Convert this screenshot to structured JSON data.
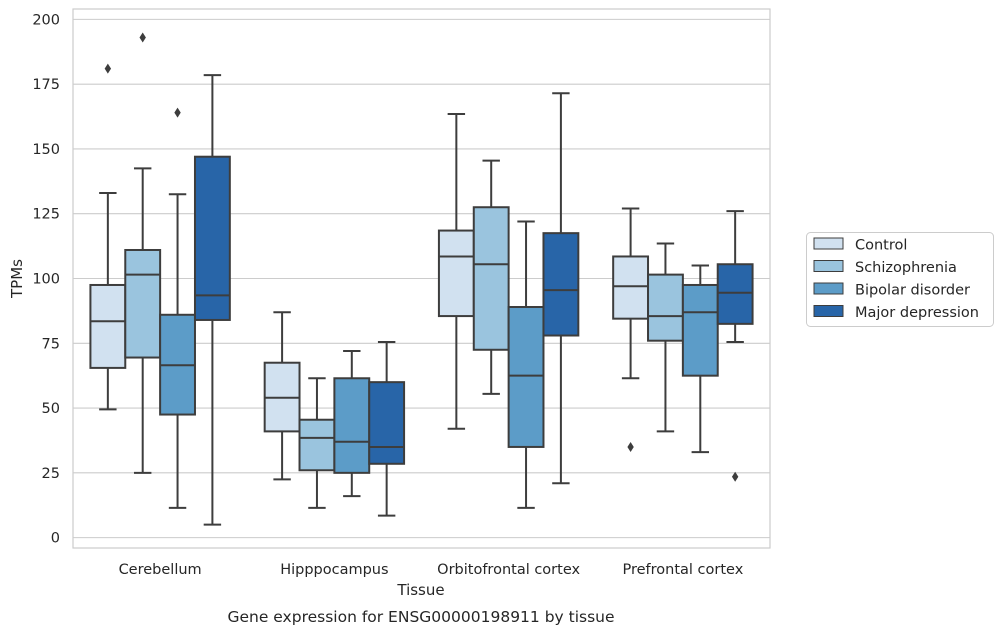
{
  "chart_data": {
    "type": "box",
    "title": "Gene expression for ENSG00000198911 by tissue",
    "xlabel": "Tissue",
    "ylabel": "TPMs",
    "ylim": [
      -4,
      204
    ],
    "yticks": [
      0,
      25,
      50,
      75,
      100,
      125,
      150,
      175,
      200
    ],
    "grid": "horizontal",
    "legend_position": "right",
    "categories": [
      "Cerebellum",
      "Hipppocampus",
      "Orbitofrontal cortex",
      "Prefrontal cortex"
    ],
    "series": [
      {
        "name": "Control",
        "color": "#d1e1f0",
        "boxes": [
          {
            "whislo": 49.5,
            "q1": 65.5,
            "med": 83.5,
            "q3": 97.5,
            "whishi": 133,
            "fliers": [
              181
            ]
          },
          {
            "whislo": 22.5,
            "q1": 41,
            "med": 54,
            "q3": 67.5,
            "whishi": 87,
            "fliers": []
          },
          {
            "whislo": 42,
            "q1": 85.5,
            "med": 108.5,
            "q3": 118.5,
            "whishi": 163.5,
            "fliers": []
          },
          {
            "whislo": 61.5,
            "q1": 84.5,
            "med": 97,
            "q3": 108.5,
            "whishi": 127,
            "fliers": [
              35
            ]
          }
        ]
      },
      {
        "name": "Schizophrenia",
        "color": "#9ac4de",
        "boxes": [
          {
            "whislo": 25,
            "q1": 69.5,
            "med": 101.5,
            "q3": 111,
            "whishi": 142.5,
            "fliers": [
              193
            ]
          },
          {
            "whislo": 11.5,
            "q1": 26,
            "med": 38.5,
            "q3": 45.5,
            "whishi": 61.5,
            "fliers": []
          },
          {
            "whislo": 55.5,
            "q1": 72.5,
            "med": 105.5,
            "q3": 127.5,
            "whishi": 145.5,
            "fliers": []
          },
          {
            "whislo": 41,
            "q1": 76,
            "med": 85.5,
            "q3": 101.5,
            "whishi": 113.5,
            "fliers": []
          }
        ]
      },
      {
        "name": "Bipolar disorder",
        "color": "#5c9cc8",
        "boxes": [
          {
            "whislo": 11.5,
            "q1": 47.5,
            "med": 66.5,
            "q3": 86,
            "whishi": 132.5,
            "fliers": [
              164
            ]
          },
          {
            "whislo": 16,
            "q1": 25,
            "med": 37,
            "q3": 61.5,
            "whishi": 72,
            "fliers": []
          },
          {
            "whislo": 11.5,
            "q1": 35,
            "med": 62.5,
            "q3": 89,
            "whishi": 122,
            "fliers": []
          },
          {
            "whislo": 33,
            "q1": 62.5,
            "med": 87,
            "q3": 97.5,
            "whishi": 105,
            "fliers": []
          }
        ]
      },
      {
        "name": "Major depression",
        "color": "#2865a8",
        "boxes": [
          {
            "whislo": 5,
            "q1": 84,
            "med": 93.5,
            "q3": 147,
            "whishi": 178.5,
            "fliers": []
          },
          {
            "whislo": 8.5,
            "q1": 28.5,
            "med": 35,
            "q3": 60,
            "whishi": 75.5,
            "fliers": []
          },
          {
            "whislo": 21,
            "q1": 78,
            "med": 95.5,
            "q3": 117.5,
            "whishi": 171.5,
            "fliers": []
          },
          {
            "whislo": 75.5,
            "q1": 82.5,
            "med": 94.5,
            "q3": 105.5,
            "whishi": 126,
            "fliers": [
              23.5
            ]
          }
        ]
      }
    ]
  }
}
